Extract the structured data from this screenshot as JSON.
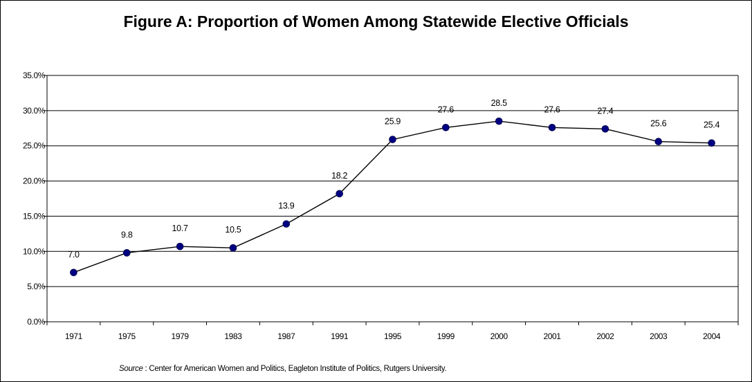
{
  "chart_data": {
    "type": "line",
    "title": "Figure A: Proportion of Women Among Statewide Elective Officials",
    "categories": [
      "1971",
      "1975",
      "1979",
      "1983",
      "1987",
      "1991",
      "1995",
      "1999",
      "2000",
      "2001",
      "2002",
      "2003",
      "2004"
    ],
    "values": [
      7.0,
      9.8,
      10.7,
      10.5,
      13.9,
      18.2,
      25.9,
      27.6,
      28.5,
      27.6,
      27.4,
      25.6,
      25.4
    ],
    "data_labels": [
      "7.0",
      "9.8",
      "10.7",
      "10.5",
      "13.9",
      "18.2",
      "25.9",
      "27.6",
      "28.5",
      "27.6",
      "27.4",
      "25.6",
      "25.4"
    ],
    "ylim": [
      0,
      35
    ],
    "yticks": [
      "0.0%",
      "5.0%",
      "10.0%",
      "15.0%",
      "20.0%",
      "25.0%",
      "30.0%",
      "35.0%"
    ],
    "xlabel": "",
    "ylabel": "",
    "grid": true,
    "legend": false,
    "line_color": "#000000",
    "marker_color": "#000080"
  },
  "source": {
    "label": "Source",
    "text": " : Center for American Women and Politics, Eagleton Institute of Politics, Rutgers University."
  }
}
